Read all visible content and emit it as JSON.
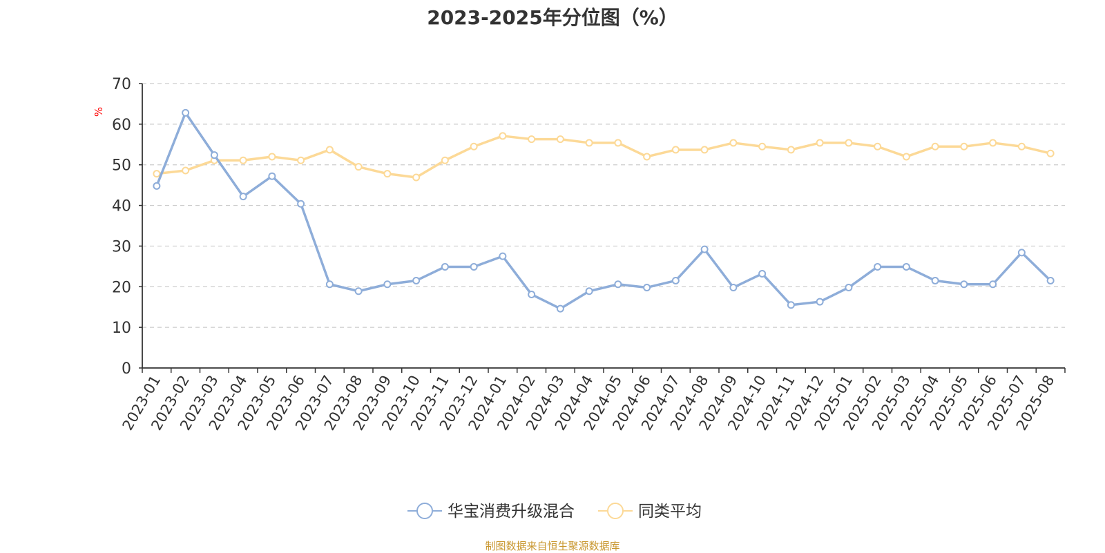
{
  "chart_data": {
    "type": "line",
    "title": "2023-2025年分位图（%）",
    "y_unit": "%",
    "ylim": [
      0,
      70
    ],
    "y_ticks": [
      "0",
      "10",
      "20",
      "30",
      "40",
      "50",
      "60",
      "70"
    ],
    "grid": true,
    "legend_position": "bottom",
    "categories": [
      "2023-01",
      "2023-02",
      "2023-03",
      "2023-04",
      "2023-05",
      "2023-06",
      "2023-07",
      "2023-08",
      "2023-09",
      "2023-10",
      "2023-11",
      "2023-12",
      "2024-01",
      "2024-02",
      "2024-03",
      "2024-04",
      "2024-05",
      "2024-06",
      "2024-07",
      "2024-08",
      "2024-09",
      "2024-10",
      "2024-11",
      "2024-12",
      "2025-01",
      "2025-02",
      "2025-03",
      "2025-04",
      "2025-05",
      "2025-06",
      "2025-07",
      "2025-08"
    ],
    "series": [
      {
        "name": "华宝消费升级混合",
        "color": "#8eadd9",
        "values": [
          44.8,
          62.8,
          52.4,
          42.2,
          47.2,
          40.4,
          20.6,
          18.9,
          20.6,
          21.5,
          24.9,
          24.9,
          27.5,
          18.1,
          14.6,
          18.9,
          20.6,
          19.8,
          21.5,
          29.2,
          19.8,
          23.2,
          15.5,
          16.3,
          19.8,
          24.9,
          24.9,
          21.5,
          20.6,
          20.6,
          28.4,
          21.5
        ]
      },
      {
        "name": "同类平均",
        "color": "#fcd997",
        "values": [
          47.8,
          48.6,
          51.1,
          51.1,
          52.0,
          51.1,
          53.7,
          49.5,
          47.8,
          46.9,
          51.1,
          54.5,
          57.1,
          56.3,
          56.3,
          55.4,
          55.4,
          52.0,
          53.7,
          53.7,
          55.4,
          54.5,
          53.7,
          55.4,
          55.4,
          54.5,
          52.0,
          54.5,
          54.5,
          55.4,
          54.5,
          52.8
        ]
      }
    ]
  },
  "source_note": "制图数据来自恒生聚源数据库"
}
